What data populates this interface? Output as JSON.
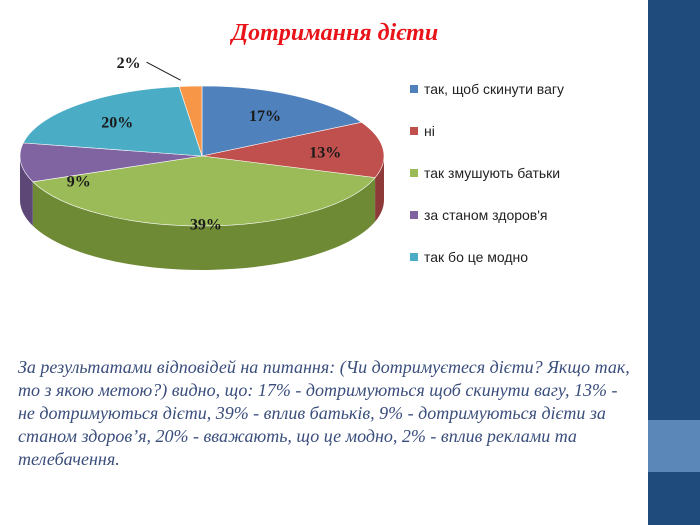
{
  "slide": {
    "title": "Дотримання дієти",
    "description": "За результатами відповідей на питання: (Чи дотримуєтеся дієти? Якщо так, то з якою метою?) видно, що: 17% - дотримуються щоб скинути вагу, 13% - не дотримуються дієти, 39% - вплив батьків, 9% - дотримуються дієти за станом здоров’я, 20% - вважають, що це модно, 2% - вплив реклами та телебачення.",
    "accent_color": "#1f4a7c"
  },
  "chart_data": {
    "type": "pie",
    "title": "Дотримання дієти",
    "slices": [
      {
        "name": "так, щоб скинути вагу",
        "value": 17,
        "label": "17%",
        "color": "#4f81bd",
        "side": "#3a6191"
      },
      {
        "name": "ні",
        "value": 13,
        "label": "13%",
        "color": "#c0504d",
        "side": "#8e3a38"
      },
      {
        "name": "так змушують батьки",
        "value": 39,
        "label": "39%",
        "color": "#9bbb59",
        "side": "#6e8a35"
      },
      {
        "name": "за станом здоров'я",
        "value": 9,
        "label": "9%",
        "color": "#8064a2",
        "side": "#5c4777"
      },
      {
        "name": "так бо це модно",
        "value": 20,
        "label": "20%",
        "color": "#4bacc6",
        "side": "#347f93"
      },
      {
        "name": "",
        "value": 2,
        "label": "2%",
        "color": "#f79646",
        "side": "#b96a2c"
      }
    ],
    "legend_position": "right"
  }
}
